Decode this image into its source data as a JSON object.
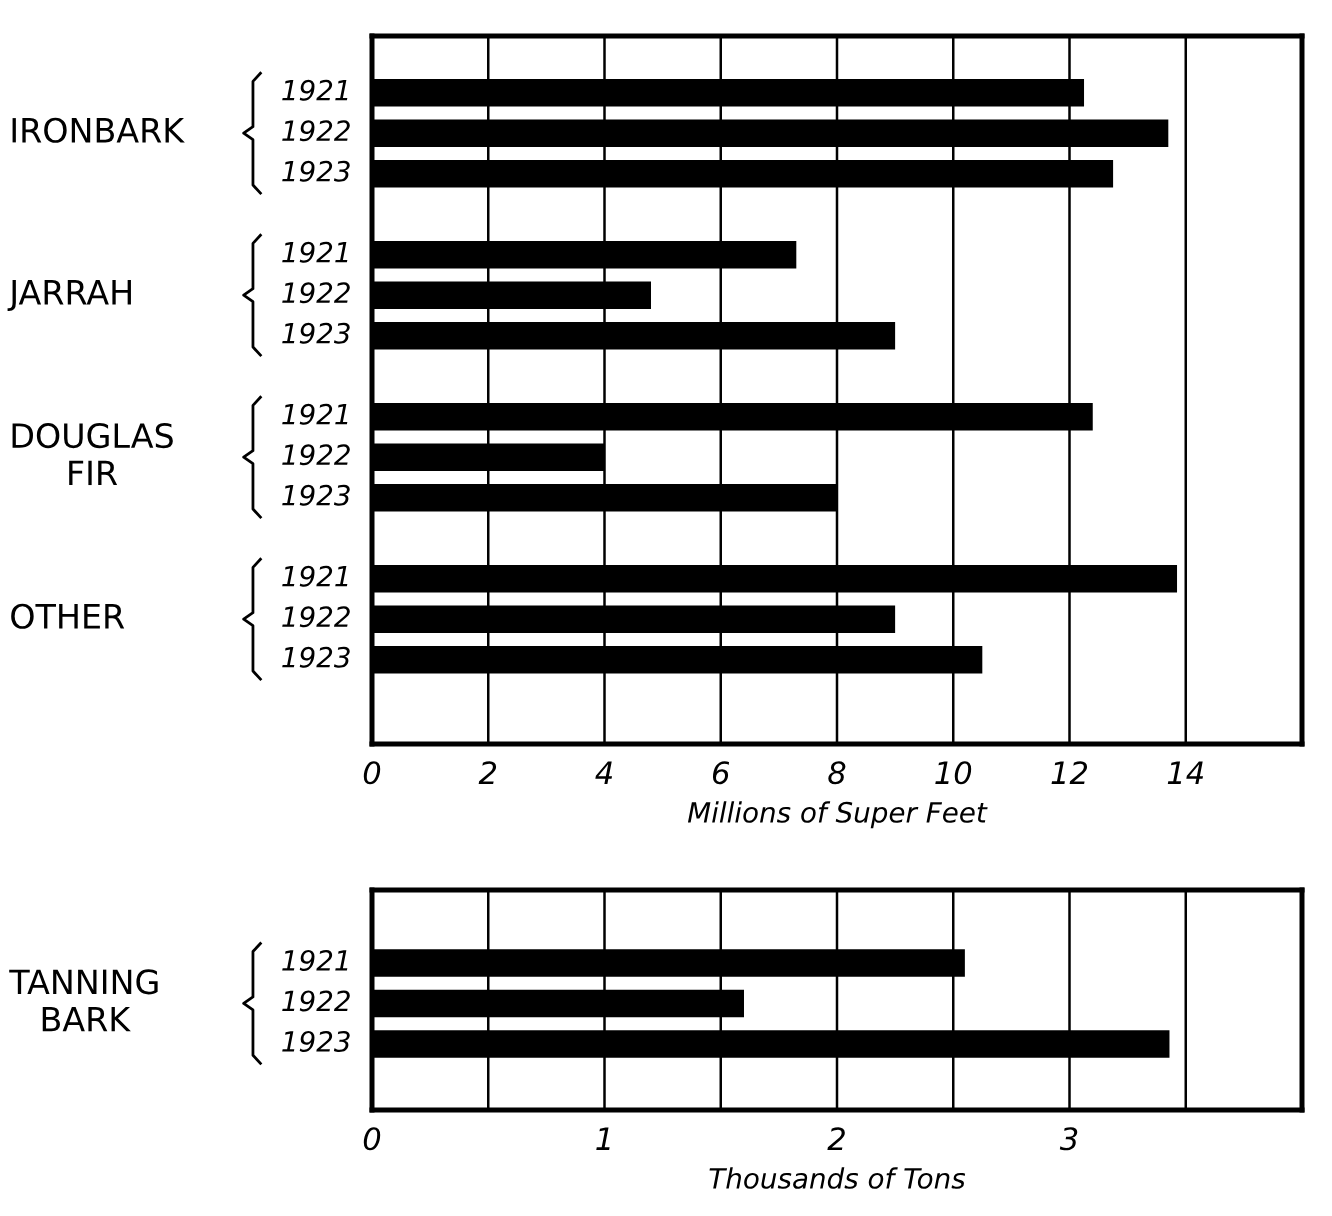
{
  "chart_data": [
    {
      "type": "bar",
      "orientation": "horizontal",
      "categories": [
        "IRONBARK",
        "JARRAH",
        "DOUGLAS\nFIR",
        "OTHER"
      ],
      "series": [
        {
          "name": "1921",
          "color": "#000000",
          "values": [
            12.25,
            7.3,
            12.4,
            13.85
          ]
        },
        {
          "name": "1922",
          "color": "#000000",
          "values": [
            13.7,
            4.8,
            4.0,
            9.0
          ]
        },
        {
          "name": "1923",
          "color": "#000000",
          "values": [
            12.75,
            9.0,
            8.0,
            10.5
          ]
        }
      ],
      "xlabel": "Millions of Super Feet",
      "xlim": [
        0,
        16
      ],
      "xticks": [
        0,
        2,
        4,
        6,
        8,
        10,
        12,
        14
      ],
      "grid": "x"
    },
    {
      "type": "bar",
      "orientation": "horizontal",
      "categories": [
        "TANNING\nBARK"
      ],
      "series": [
        {
          "name": "1921",
          "color": "#000000",
          "values": [
            2.55
          ]
        },
        {
          "name": "1922",
          "color": "#000000",
          "values": [
            1.6
          ]
        },
        {
          "name": "1923",
          "color": "#000000",
          "values": [
            3.43
          ]
        }
      ],
      "xlabel": "Thousands of Tons",
      "xlim": [
        0,
        4
      ],
      "xticks": [
        0,
        {
          "value": 0.5,
          "label": null
        },
        1,
        {
          "value": 1.5,
          "label": null
        },
        2,
        {
          "value": 2.5,
          "label": null
        },
        3,
        {
          "value": 3.5,
          "label": null
        }
      ],
      "grid": "x"
    }
  ]
}
